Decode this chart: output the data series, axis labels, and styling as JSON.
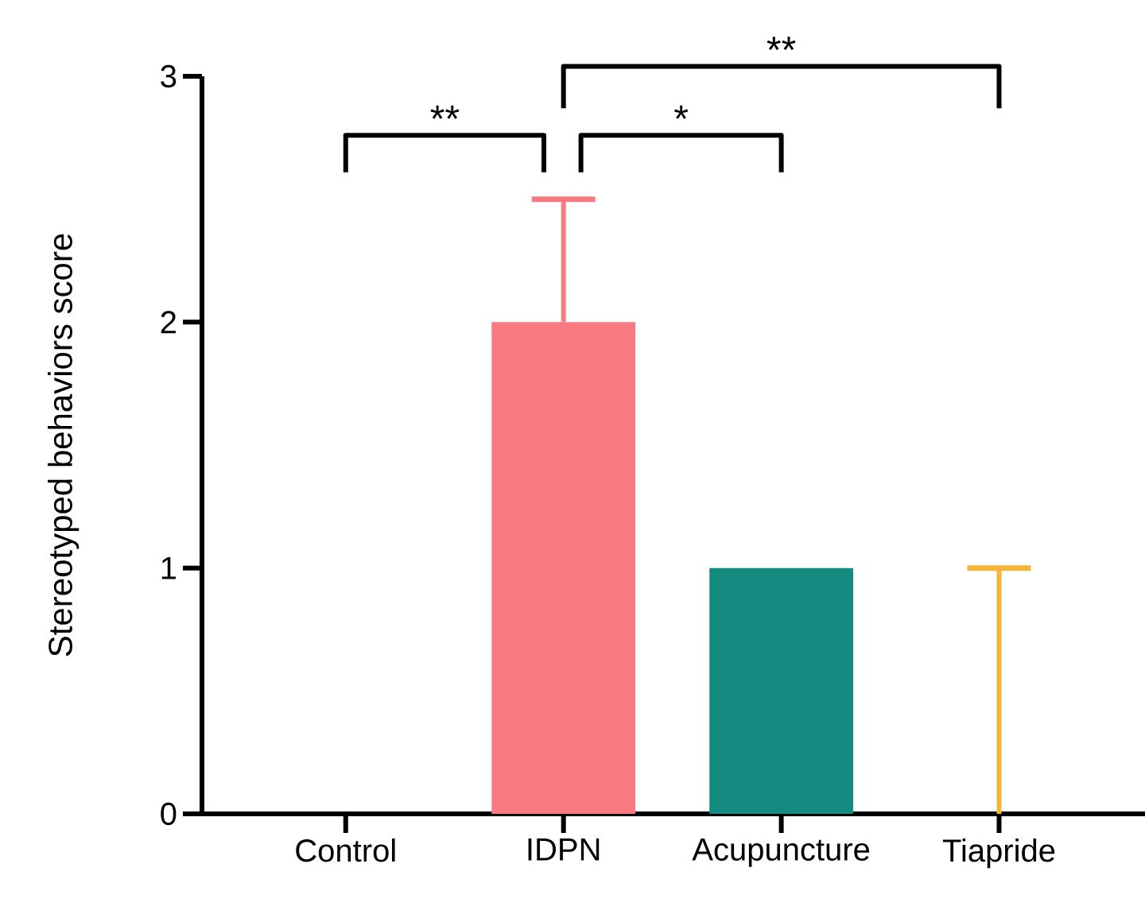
{
  "chart_data": {
    "type": "bar",
    "ylabel": "Stereotyped behaviors score",
    "categories": [
      "Control",
      "IDPN",
      "Acupuncture",
      "Tiapride"
    ],
    "values": [
      0,
      2,
      1,
      0
    ],
    "colors": [
      "#f77b80",
      "#f77b80",
      "#138a80",
      "#f6b53a"
    ],
    "errors": [
      null,
      [
        2,
        2.5
      ],
      null,
      [
        0,
        1
      ]
    ],
    "ylim": [
      0,
      3
    ],
    "yticks": [
      0,
      1,
      2,
      3
    ],
    "annotations": [
      "**",
      "*",
      "**"
    ],
    "grid": false
  }
}
